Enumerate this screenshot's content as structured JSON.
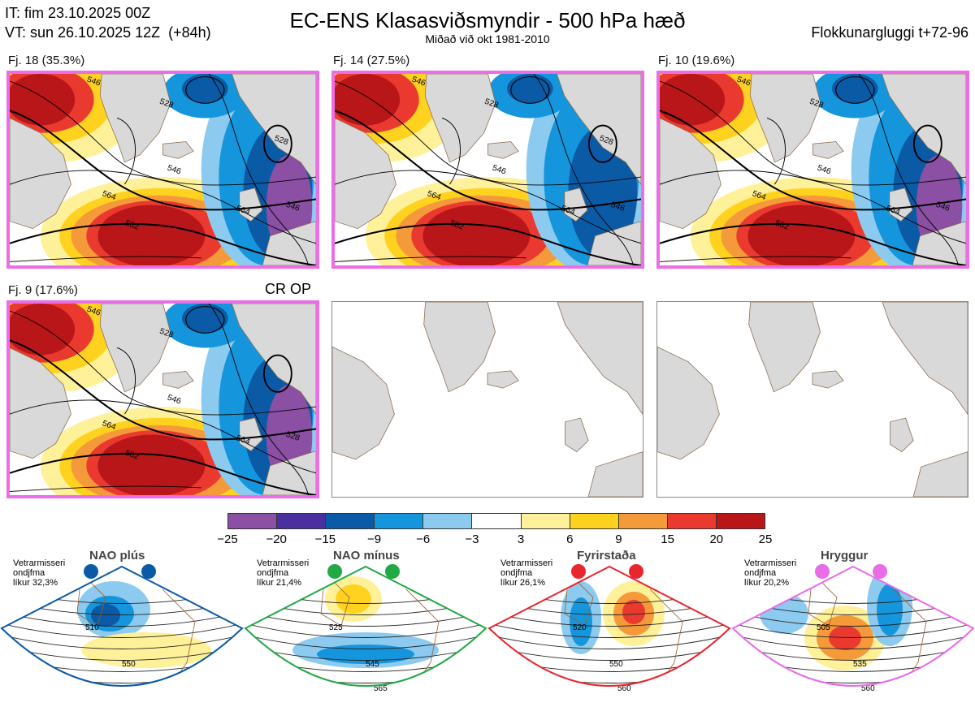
{
  "header": {
    "init_time": "IT: fim 23.10.2025 00Z",
    "valid_time": "VT: sun 26.10.2025 12Z  (+84h)",
    "title": "EC-ENS Klasasviðsmyndir - 500 hPa hæð",
    "subtitle": "Miðað við okt 1981-2010",
    "window": "Flokkunargluggi t+72-96"
  },
  "panels": [
    {
      "label": "Fj. 18 (35.3%)",
      "contours": [
        "546",
        "528",
        "546",
        "564",
        "582",
        "564",
        "546",
        "528"
      ]
    },
    {
      "label": "Fj. 14 (27.5%)",
      "contours": [
        "546",
        "528",
        "546",
        "564",
        "582",
        "564",
        "546",
        "528"
      ]
    },
    {
      "label": "Fj. 10 (19.6%)",
      "contours": [
        "546",
        "528",
        "546",
        "564",
        "582",
        "564",
        "546"
      ]
    },
    {
      "label": "Fj. 9 (17.6%)",
      "contours": [
        "546",
        "528",
        "546",
        "564",
        "582",
        "564",
        "528"
      ],
      "badge": "CR OP"
    }
  ],
  "colorbar": {
    "colors": [
      "#8b4fa3",
      "#4b2f9e",
      "#0b5aa5",
      "#1596dc",
      "#8ccbef",
      "#ffffff",
      "#fff19a",
      "#ffd21f",
      "#f59a3a",
      "#ea3a30",
      "#b81619"
    ],
    "ticks": [
      "−25",
      "−20",
      "−15",
      "−9",
      "−6",
      "−3",
      "3",
      "6",
      "9",
      "15",
      "20",
      "25"
    ]
  },
  "regimes": [
    {
      "title": "NAO plús",
      "note": "Vetrarmisseri\nondjfma\nlíkur 32,3%",
      "color": "#0b5aa5",
      "labels": [
        "510",
        "550"
      ]
    },
    {
      "title": "NAO mínus",
      "note": "Vetrarmisseri\nondjfma\nlíkur 21,4%",
      "color": "#22a845",
      "labels": [
        "525",
        "545",
        "565"
      ]
    },
    {
      "title": "Fyrirstaða",
      "note": "Vetrarmisseri\nondjfma\nlíkur 26,1%",
      "color": "#e8262d",
      "labels": [
        "520",
        "550",
        "560"
      ]
    },
    {
      "title": "Hryggur",
      "note": "Vetrarmisseri\nondjfma\nlíkur 20,2%",
      "color": "#e86be8",
      "labels": [
        "505",
        "535",
        "560"
      ]
    }
  ]
}
